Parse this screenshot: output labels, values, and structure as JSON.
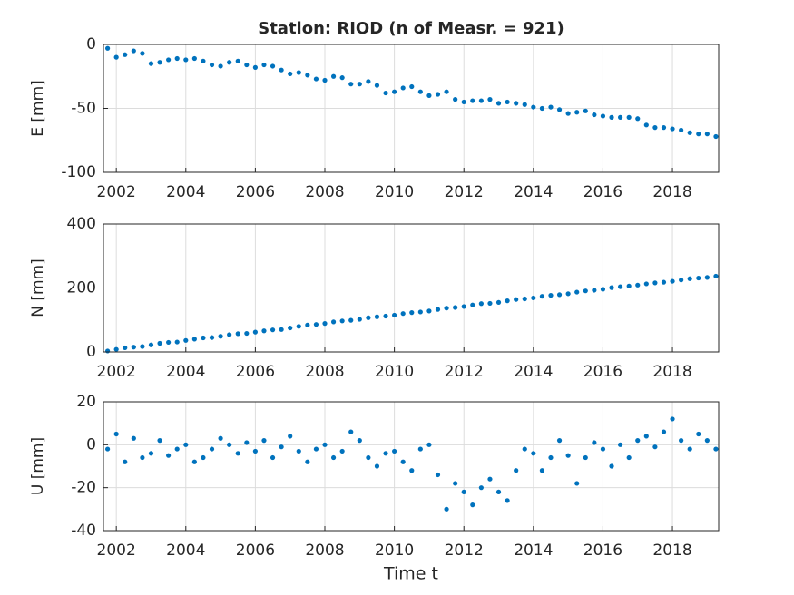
{
  "chart_data": [
    {
      "type": "scatter",
      "title": "Station: RIOD (n of Measr. = 921)",
      "ylabel": "E [mm]",
      "xlim": [
        2001.63,
        2019.33
      ],
      "xticks": [
        2002,
        2004,
        2006,
        2008,
        2010,
        2012,
        2014,
        2016,
        2018
      ],
      "ylim": [
        -100,
        0
      ],
      "yticks": [
        -100,
        -50,
        0
      ],
      "grid": true,
      "x": [
        2001.75,
        2002,
        2002.25,
        2002.5,
        2002.75,
        2003,
        2003.25,
        2003.5,
        2003.75,
        2004,
        2004.25,
        2004.5,
        2004.75,
        2005,
        2005.25,
        2005.5,
        2005.75,
        2006,
        2006.25,
        2006.5,
        2006.75,
        2007,
        2007.25,
        2007.5,
        2007.75,
        2008,
        2008.25,
        2008.5,
        2008.75,
        2009,
        2009.25,
        2009.5,
        2009.75,
        2010,
        2010.25,
        2010.5,
        2010.75,
        2011,
        2011.25,
        2011.5,
        2011.75,
        2012,
        2012.25,
        2012.5,
        2012.75,
        2013,
        2013.25,
        2013.5,
        2013.75,
        2014,
        2014.25,
        2014.5,
        2014.75,
        2015,
        2015.25,
        2015.5,
        2015.75,
        2016,
        2016.25,
        2016.5,
        2016.75,
        2017,
        2017.25,
        2017.5,
        2017.75,
        2018,
        2018.25,
        2018.5,
        2018.75,
        2019,
        2019.25
      ],
      "series": [
        {
          "color": "#0072bd",
          "values": [
            -3,
            -10,
            -8,
            -5,
            -7,
            -15,
            -14,
            -12,
            -11,
            -12,
            -11,
            -13,
            -16,
            -17,
            -14,
            -13,
            -16,
            -18,
            -16,
            -17,
            -20,
            -23,
            -22,
            -24,
            -27,
            -28,
            -25,
            -26,
            -31,
            -31,
            -29,
            -32,
            -38,
            -37,
            -34,
            -33,
            -37,
            -40,
            -39,
            -37,
            -43,
            -45,
            -44,
            -44,
            -43,
            -46,
            -45,
            -46,
            -47,
            -49,
            -50,
            -49,
            -51,
            -54,
            -53,
            -52,
            -55,
            -56,
            -57,
            -57,
            -57,
            -58,
            -63,
            -65,
            -65,
            -66,
            -67,
            -69,
            -70,
            -70,
            -72
          ]
        }
      ]
    },
    {
      "type": "scatter",
      "ylabel": "N [mm]",
      "xlim": [
        2001.63,
        2019.33
      ],
      "xticks": [
        2002,
        2004,
        2006,
        2008,
        2010,
        2012,
        2014,
        2016,
        2018
      ],
      "ylim": [
        0,
        400
      ],
      "yticks": [
        0,
        200,
        400
      ],
      "grid": true,
      "x": [
        2001.75,
        2002,
        2002.25,
        2002.5,
        2002.75,
        2003,
        2003.25,
        2003.5,
        2003.75,
        2004,
        2004.25,
        2004.5,
        2004.75,
        2005,
        2005.25,
        2005.5,
        2005.75,
        2006,
        2006.25,
        2006.5,
        2006.75,
        2007,
        2007.25,
        2007.5,
        2007.75,
        2008,
        2008.25,
        2008.5,
        2008.75,
        2009,
        2009.25,
        2009.5,
        2009.75,
        2010,
        2010.25,
        2010.5,
        2010.75,
        2011,
        2011.25,
        2011.5,
        2011.75,
        2012,
        2012.25,
        2012.5,
        2012.75,
        2013,
        2013.25,
        2013.5,
        2013.75,
        2014,
        2014.25,
        2014.5,
        2014.75,
        2015,
        2015.25,
        2015.5,
        2015.75,
        2016,
        2016.25,
        2016.5,
        2016.75,
        2017,
        2017.25,
        2017.5,
        2017.75,
        2018,
        2018.25,
        2018.5,
        2018.75,
        2019,
        2019.25
      ],
      "series": [
        {
          "color": "#0072bd",
          "values": [
            3,
            8,
            13,
            15,
            17,
            22,
            27,
            30,
            31,
            36,
            40,
            44,
            45,
            49,
            54,
            57,
            58,
            62,
            66,
            69,
            70,
            75,
            80,
            84,
            86,
            89,
            94,
            97,
            99,
            102,
            107,
            110,
            112,
            115,
            120,
            123,
            125,
            128,
            133,
            137,
            139,
            142,
            147,
            151,
            152,
            155,
            160,
            164,
            166,
            169,
            174,
            177,
            179,
            182,
            187,
            191,
            193,
            196,
            201,
            204,
            206,
            209,
            213,
            216,
            218,
            221,
            225,
            229,
            231,
            233,
            237
          ]
        }
      ]
    },
    {
      "type": "scatter",
      "ylabel": "U [mm]",
      "xlabel": "Time t",
      "xlim": [
        2001.63,
        2019.33
      ],
      "xticks": [
        2002,
        2004,
        2006,
        2008,
        2010,
        2012,
        2014,
        2016,
        2018
      ],
      "ylim": [
        -40,
        20
      ],
      "yticks": [
        -40,
        -20,
        0,
        20
      ],
      "grid": true,
      "x": [
        2001.75,
        2002,
        2002.25,
        2002.5,
        2002.75,
        2003,
        2003.25,
        2003.5,
        2003.75,
        2004,
        2004.25,
        2004.5,
        2004.75,
        2005,
        2005.25,
        2005.5,
        2005.75,
        2006,
        2006.25,
        2006.5,
        2006.75,
        2007,
        2007.25,
        2007.5,
        2007.75,
        2008,
        2008.25,
        2008.5,
        2008.75,
        2009,
        2009.25,
        2009.5,
        2009.75,
        2010,
        2010.25,
        2010.5,
        2010.75,
        2011,
        2011.25,
        2011.5,
        2011.75,
        2012,
        2012.25,
        2012.5,
        2012.75,
        2013,
        2013.25,
        2013.5,
        2013.75,
        2014,
        2014.25,
        2014.5,
        2014.75,
        2015,
        2015.25,
        2015.5,
        2015.75,
        2016,
        2016.25,
        2016.5,
        2016.75,
        2017,
        2017.25,
        2017.5,
        2017.75,
        2018,
        2018.25,
        2018.5,
        2018.75,
        2019,
        2019.25
      ],
      "series": [
        {
          "color": "#0072bd",
          "values": [
            -2,
            5,
            -8,
            3,
            -6,
            -4,
            2,
            -5,
            -2,
            0,
            -8,
            -6,
            -2,
            3,
            0,
            -4,
            1,
            -3,
            2,
            -6,
            -1,
            4,
            -3,
            -8,
            -2,
            0,
            -6,
            -3,
            6,
            2,
            -6,
            -10,
            -4,
            -3,
            -8,
            -12,
            -2,
            0,
            -14,
            -30,
            -18,
            -22,
            -28,
            -20,
            -16,
            -22,
            -26,
            -12,
            -2,
            -4,
            -12,
            -6,
            2,
            -5,
            -18,
            -6,
            1,
            -2,
            -10,
            0,
            -6,
            2,
            4,
            -1,
            6,
            12,
            2,
            -2,
            5,
            2,
            -2
          ]
        }
      ]
    }
  ]
}
